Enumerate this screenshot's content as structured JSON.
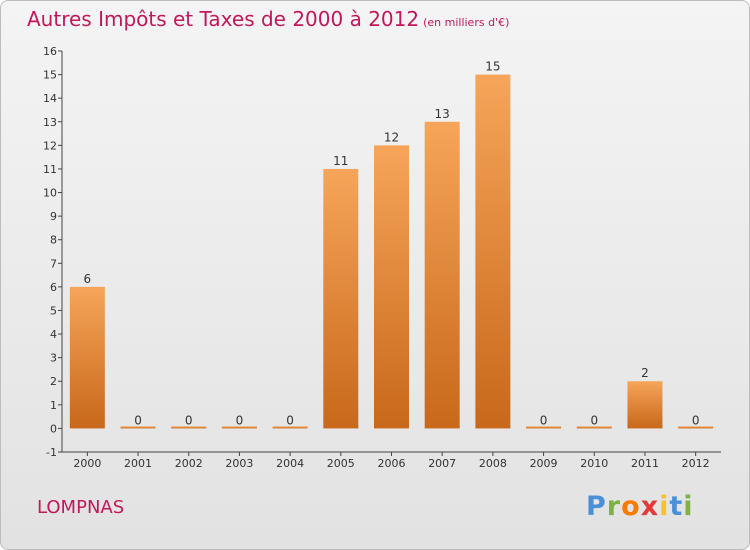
{
  "title": "Autres Impôts et Taxes de 2000 à 2012",
  "subtitle": "(en milliers d'€)",
  "commune": "LOMPNAS",
  "logo": {
    "letters": [
      "P",
      "r",
      "o",
      "x",
      "i",
      "t",
      "i"
    ],
    "colors": [
      "#4a90d9",
      "#7cb342",
      "#f57c00",
      "#e53935",
      "#fbc02d",
      "#4a90d9",
      "#7cb342"
    ]
  },
  "colors": {
    "bar_light": "#f6a55a",
    "bar_dark": "#c8681a",
    "title": "#c2185b",
    "axis": "#333333"
  },
  "chart_data": {
    "type": "bar",
    "categories": [
      "2000",
      "2001",
      "2002",
      "2003",
      "2004",
      "2005",
      "2006",
      "2007",
      "2008",
      "2009",
      "2010",
      "2011",
      "2012"
    ],
    "values": [
      6,
      0,
      0,
      0,
      0,
      11,
      12,
      13,
      15,
      0,
      0,
      2,
      0
    ],
    "ylim": [
      -1,
      16
    ],
    "yticks": [
      -1,
      0,
      1,
      2,
      3,
      4,
      5,
      6,
      7,
      8,
      9,
      10,
      11,
      12,
      13,
      14,
      15,
      16
    ],
    "grid": false,
    "title": "Autres Impôts et Taxes de 2000 à 2012",
    "xlabel": "",
    "ylabel": ""
  }
}
